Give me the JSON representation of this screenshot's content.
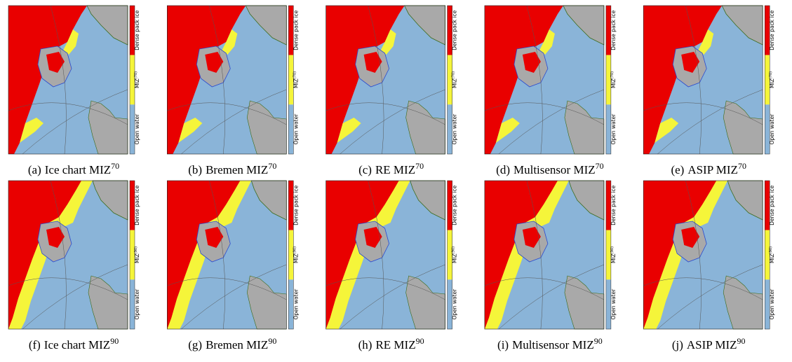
{
  "colorbar": {
    "dense": "Dense pack ice",
    "miz": "MIZ",
    "open": "Open water"
  },
  "rows": [
    {
      "colorbar_sup": "(70)",
      "panels": [
        {
          "label": "(a)",
          "text": "Ice chart MIZ",
          "sup": "70"
        },
        {
          "label": "(b)",
          "text": "Bremen MIZ",
          "sup": "70"
        },
        {
          "label": "(c)",
          "text": "RE MIZ",
          "sup": "70"
        },
        {
          "label": "(d)",
          "text": "Multisensor MIZ",
          "sup": "70"
        },
        {
          "label": "(e)",
          "text": "ASIP MIZ",
          "sup": "70"
        }
      ]
    },
    {
      "colorbar_sup": "(90)",
      "panels": [
        {
          "label": "(f)",
          "text": "Ice chart MIZ",
          "sup": "90"
        },
        {
          "label": "(g)",
          "text": "Bremen MIZ",
          "sup": "90"
        },
        {
          "label": "(h)",
          "text": "RE MIZ",
          "sup": "90"
        },
        {
          "label": "(i)",
          "text": "Multisensor MIZ",
          "sup": "90"
        },
        {
          "label": "(j)",
          "text": "ASIP MIZ",
          "sup": "90"
        }
      ]
    }
  ]
}
